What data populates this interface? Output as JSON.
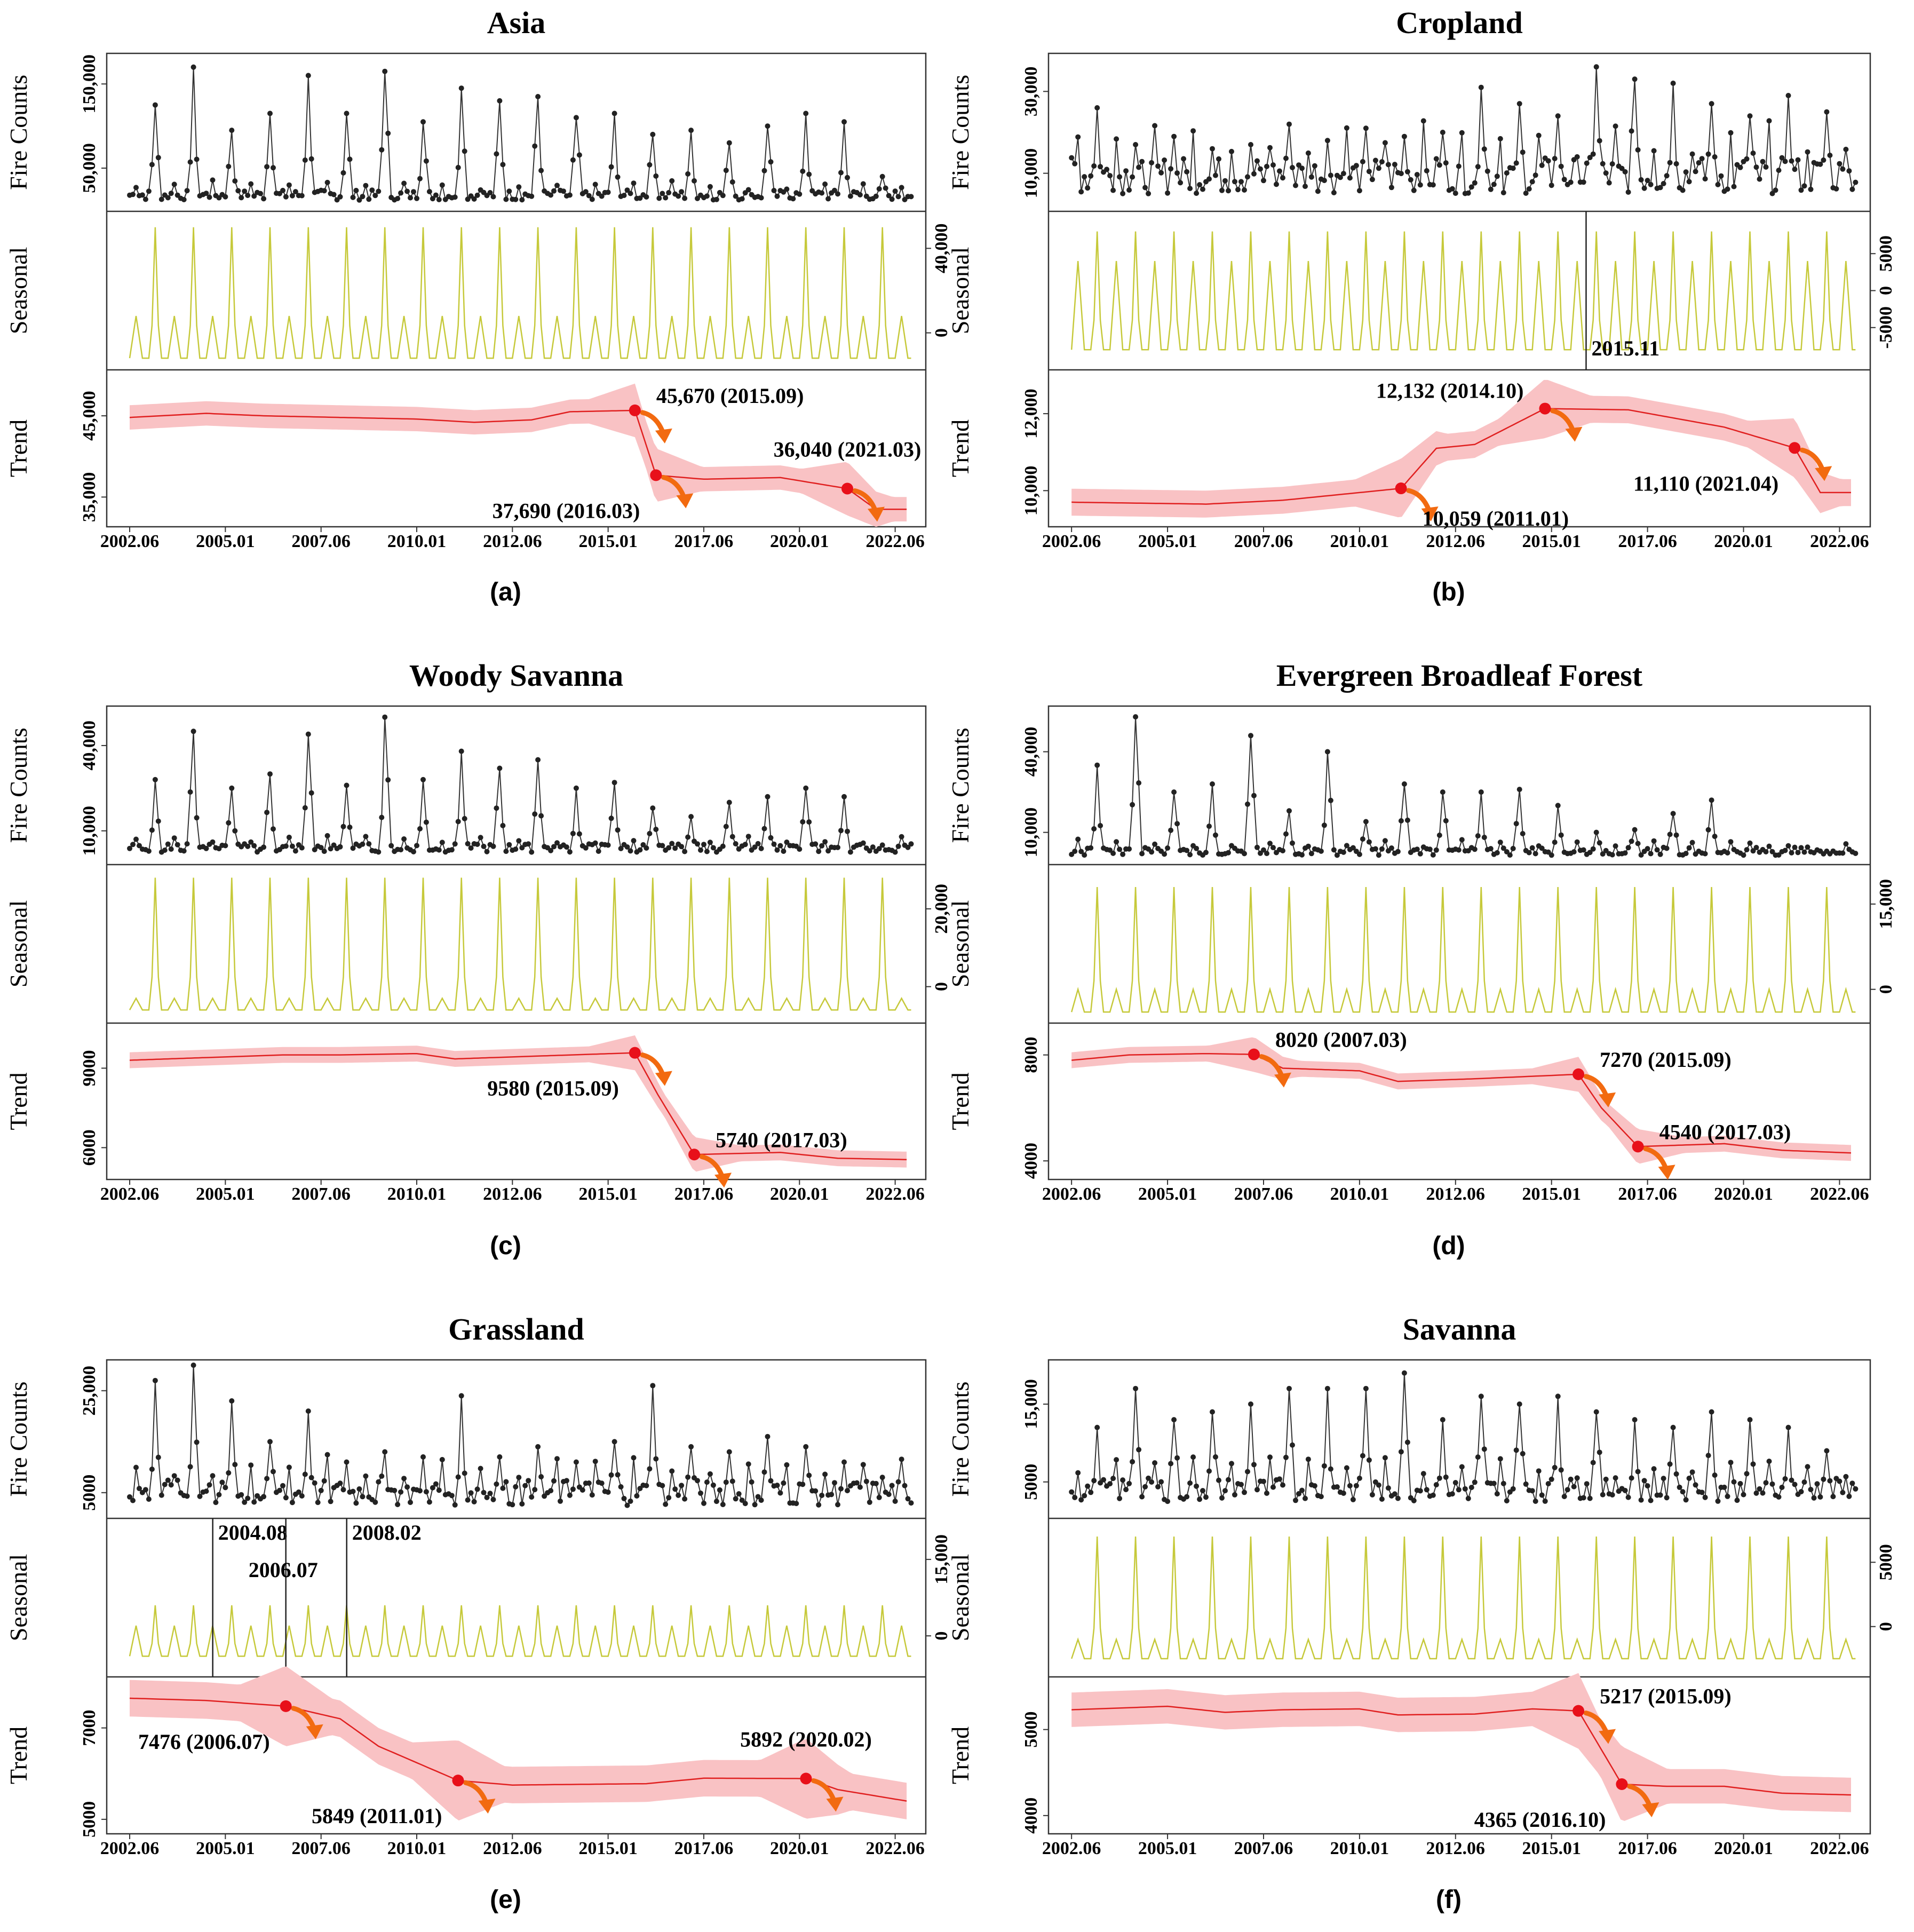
{
  "figure": {
    "x_ticks": [
      "2002.06",
      "2005.01",
      "2007.06",
      "2010.01",
      "2012.06",
      "2015.01",
      "2017.06",
      "2020.01",
      "2022.06"
    ],
    "y_labels": {
      "fire": "Fire Counts",
      "seasonal": "Seasonal",
      "trend": "Trend"
    }
  },
  "chart_data": [
    {
      "type": "line",
      "title": "Asia",
      "panel_label": "(a)",
      "fire_ticks": [
        {
          "v": 50000,
          "label": "50,000"
        },
        {
          "v": 150000,
          "label": "150,000"
        }
      ],
      "fire_range": [
        5000,
        180000
      ],
      "fire_base": 12000,
      "fire_spread": 12000,
      "fire_peaks": [
        125000,
        170000,
        95000,
        115000,
        160000,
        115000,
        165000,
        105000,
        145000,
        130000,
        135000,
        110000,
        115000,
        90000,
        95000,
        80000,
        100000,
        115000,
        105000,
        40000
      ],
      "seasonal_ticks": [
        {
          "v": 0,
          "label": "0"
        },
        {
          "v": 40000,
          "label": "40,000"
        }
      ],
      "seasonal_range": [
        -15000,
        55000
      ],
      "seasonal_amp": 50000,
      "seasonal_secondary": 8000,
      "seasonal_trough": -12000,
      "trend_ticks": [
        {
          "v": 35000,
          "label": "35,000"
        },
        {
          "v": 45000,
          "label": "45,000"
        }
      ],
      "trend_range": [
        32000,
        50000
      ],
      "trend_points": [
        [
          2002.5,
          44800
        ],
        [
          2004.5,
          45300
        ],
        [
          2006.0,
          45000
        ],
        [
          2008.0,
          44800
        ],
        [
          2010.0,
          44600
        ],
        [
          2011.5,
          44200
        ],
        [
          2013.0,
          44500
        ],
        [
          2014.0,
          45500
        ],
        [
          2015.7,
          45670
        ],
        [
          2016.25,
          37690
        ],
        [
          2017.5,
          37200
        ],
        [
          2019.5,
          37400
        ],
        [
          2021.25,
          36040
        ],
        [
          2022.0,
          33500
        ],
        [
          2022.8,
          33500
        ]
      ],
      "trend_band": 1500,
      "breakpoints": [
        {
          "x": 2015.7,
          "y": 45670,
          "label": "45,670 (2015.09)",
          "pos": "right-above"
        },
        {
          "x": 2016.25,
          "y": 37690,
          "label": "37,690 (2016.03)",
          "pos": "left-below"
        },
        {
          "x": 2021.25,
          "y": 36040,
          "label": "36,040 (2021.03)",
          "pos": "above"
        }
      ],
      "seasonal_breaks": []
    },
    {
      "type": "line",
      "title": "Cropland",
      "panel_label": "(b)",
      "fire_ticks": [
        {
          "v": 10000,
          "label": "10,000"
        },
        {
          "v": 30000,
          "label": "30,000"
        }
      ],
      "fire_range": [
        2000,
        38000
      ],
      "fire_base": 5000,
      "fire_spread": 9000,
      "fire_peaks": [
        26000,
        17000,
        19000,
        16000,
        17000,
        22000,
        18000,
        21000,
        19000,
        20000,
        31000,
        27000,
        24000,
        36000,
        33000,
        32000,
        27000,
        24000,
        29000,
        25000
      ],
      "seasonal_ticks": [
        {
          "v": -5000,
          "label": "-5000"
        },
        {
          "v": 0,
          "label": "0"
        },
        {
          "v": 5000,
          "label": "5000"
        }
      ],
      "seasonal_range": [
        -10000,
        10000
      ],
      "seasonal_amp": 8000,
      "seasonal_secondary": 4000,
      "seasonal_trough": -8000,
      "seasonal_breaks": [
        {
          "x": 2015.9,
          "label": "2015.11"
        }
      ],
      "trend_ticks": [
        {
          "v": 10000,
          "label": "10,000"
        },
        {
          "v": 12000,
          "label": "12,000"
        }
      ],
      "trend_range": [
        9200,
        13000
      ],
      "trend_points": [
        [
          2002.5,
          9700
        ],
        [
          2006.0,
          9650
        ],
        [
          2008.0,
          9750
        ],
        [
          2010.0,
          9950
        ],
        [
          2011.08,
          10059
        ],
        [
          2012.0,
          11100
        ],
        [
          2013.0,
          11200
        ],
        [
          2014.83,
          12132
        ],
        [
          2017.0,
          12100
        ],
        [
          2019.5,
          11650
        ],
        [
          2021.33,
          11110
        ],
        [
          2022.0,
          9950
        ],
        [
          2022.8,
          9950
        ]
      ],
      "trend_band": 350,
      "breakpoints": [
        {
          "x": 2011.08,
          "y": 10059,
          "label": "10,059 (2011.01)",
          "pos": "right-below"
        },
        {
          "x": 2014.83,
          "y": 12132,
          "label": "12,132 (2014.10)",
          "pos": "left-above"
        },
        {
          "x": 2021.33,
          "y": 11110,
          "label": "11,110 (2021.04)",
          "pos": "left-below"
        }
      ]
    },
    {
      "type": "line",
      "title": "Woody Savanna",
      "panel_label": "(c)",
      "fire_ticks": [
        {
          "v": 10000,
          "label": "10,000"
        },
        {
          "v": 40000,
          "label": "40,000"
        }
      ],
      "fire_range": [
        0,
        52000
      ],
      "fire_base": 2500,
      "fire_spread": 3000,
      "fire_peaks": [
        28000,
        45000,
        25000,
        30000,
        44000,
        26000,
        50000,
        28000,
        38000,
        32000,
        35000,
        25000,
        27000,
        18000,
        15000,
        20000,
        22000,
        25000,
        22000,
        5000
      ],
      "seasonal_ticks": [
        {
          "v": 0,
          "label": "0"
        },
        {
          "v": 20000,
          "label": "20,000"
        }
      ],
      "seasonal_range": [
        -8000,
        30000
      ],
      "seasonal_amp": 28000,
      "seasonal_secondary": -3000,
      "seasonal_trough": -6000,
      "trend_ticks": [
        {
          "v": 6000,
          "label": "6000"
        },
        {
          "v": 9000,
          "label": "9000"
        }
      ],
      "trend_range": [
        5000,
        10500
      ],
      "trend_points": [
        [
          2002.5,
          9300
        ],
        [
          2004.5,
          9400
        ],
        [
          2006.5,
          9500
        ],
        [
          2008.0,
          9500
        ],
        [
          2010.0,
          9550
        ],
        [
          2011.0,
          9350
        ],
        [
          2013.0,
          9450
        ],
        [
          2015.7,
          9580
        ],
        [
          2016.3,
          8000
        ],
        [
          2017.25,
          5740
        ],
        [
          2019.5,
          5820
        ],
        [
          2021.0,
          5600
        ],
        [
          2022.8,
          5550
        ]
      ],
      "trend_band": 300,
      "breakpoints": [
        {
          "x": 2015.7,
          "y": 9580,
          "label": "9580 (2015.09)",
          "pos": "left-below"
        },
        {
          "x": 2017.25,
          "y": 5740,
          "label": "5740 (2017.03)",
          "pos": "right-above"
        }
      ],
      "seasonal_breaks": []
    },
    {
      "type": "line",
      "title": "Evergreen Broadleaf Forest",
      "panel_label": "(d)",
      "fire_ticks": [
        {
          "v": 10000,
          "label": "10,000"
        },
        {
          "v": 40000,
          "label": "40,000"
        }
      ],
      "fire_range": [
        0,
        55000
      ],
      "fire_base": 1500,
      "fire_spread": 3000,
      "fire_peaks": [
        35000,
        53000,
        25000,
        28000,
        46000,
        18000,
        40000,
        14000,
        28000,
        25000,
        25000,
        26000,
        20000,
        10000,
        11000,
        17000,
        22000,
        6000,
        5000,
        3000
      ],
      "seasonal_ticks": [
        {
          "v": 0,
          "label": "0"
        },
        {
          "v": 15000,
          "label": "15,000"
        }
      ],
      "seasonal_range": [
        -5000,
        21000
      ],
      "seasonal_amp": 18000,
      "seasonal_secondary": 0,
      "seasonal_trough": -4000,
      "trend_ticks": [
        {
          "v": 4000,
          "label": "4000"
        },
        {
          "v": 8000,
          "label": "8000"
        }
      ],
      "trend_range": [
        3500,
        9000
      ],
      "trend_points": [
        [
          2002.5,
          7800
        ],
        [
          2004.0,
          8000
        ],
        [
          2006.0,
          8050
        ],
        [
          2007.25,
          8020
        ],
        [
          2008.0,
          7500
        ],
        [
          2010.0,
          7400
        ],
        [
          2011.0,
          7000
        ],
        [
          2013.0,
          7100
        ],
        [
          2015.7,
          7270
        ],
        [
          2016.3,
          6000
        ],
        [
          2017.25,
          4540
        ],
        [
          2019.5,
          4650
        ],
        [
          2021.0,
          4400
        ],
        [
          2022.8,
          4300
        ]
      ],
      "trend_band": 300,
      "breakpoints": [
        {
          "x": 2007.25,
          "y": 8020,
          "label": "8020 (2007.03)",
          "pos": "right-above"
        },
        {
          "x": 2015.7,
          "y": 7270,
          "label": "7270 (2015.09)",
          "pos": "right-above"
        },
        {
          "x": 2017.25,
          "y": 4540,
          "label": "4540 (2017.03)",
          "pos": "right-above"
        }
      ],
      "seasonal_breaks": []
    },
    {
      "type": "line",
      "title": "Grassland",
      "panel_label": "(e)",
      "fire_ticks": [
        {
          "v": 5000,
          "label": "5000"
        },
        {
          "v": 25000,
          "label": "25,000"
        }
      ],
      "fire_range": [
        1000,
        30000
      ],
      "fire_base": 2500,
      "fire_spread": 5000,
      "fire_peaks": [
        27000,
        30000,
        23000,
        15000,
        21000,
        11000,
        13000,
        12000,
        24000,
        12000,
        14000,
        11000,
        15000,
        26000,
        14000,
        13000,
        16000,
        14000,
        11000,
        8000
      ],
      "seasonal_ticks": [
        {
          "v": 0,
          "label": "0"
        },
        {
          "v": 15000,
          "label": "15,000"
        }
      ],
      "seasonal_range": [
        -7000,
        22000
      ],
      "seasonal_amp": 6000,
      "seasonal_secondary": 2000,
      "seasonal_trough": -4000,
      "seasonal_breaks": [
        {
          "x": 2004.67,
          "label": "2004.08"
        },
        {
          "x": 2006.58,
          "label": "2006.07"
        },
        {
          "x": 2008.17,
          "label": "2008.02"
        }
      ],
      "trend_ticks": [
        {
          "v": 5000,
          "label": "5000"
        },
        {
          "v": 7000,
          "label": "7000"
        }
      ],
      "trend_range": [
        4800,
        8000
      ],
      "trend_points": [
        [
          2002.5,
          7650
        ],
        [
          2004.5,
          7600
        ],
        [
          2006.58,
          7476
        ],
        [
          2008.0,
          7200
        ],
        [
          2009.0,
          6600
        ],
        [
          2011.08,
          5849
        ],
        [
          2012.5,
          5750
        ],
        [
          2016.0,
          5780
        ],
        [
          2017.5,
          5900
        ],
        [
          2020.17,
          5892
        ],
        [
          2021.0,
          5650
        ],
        [
          2022.8,
          5400
        ]
      ],
      "trend_band": 400,
      "breakpoints": [
        {
          "x": 2006.58,
          "y": 7476,
          "label": "7476 (2006.07)",
          "pos": "left-below"
        },
        {
          "x": 2011.08,
          "y": 5849,
          "label": "5849 (2011.01)",
          "pos": "left-below"
        },
        {
          "x": 2020.17,
          "y": 5892,
          "label": "5892 (2020.02)",
          "pos": "above"
        }
      ]
    },
    {
      "type": "line",
      "title": "Savanna",
      "panel_label": "(f)",
      "fire_ticks": [
        {
          "v": 5000,
          "label": "5000"
        },
        {
          "v": 15000,
          "label": "15,000"
        }
      ],
      "fire_range": [
        1000,
        20000
      ],
      "fire_base": 2500,
      "fire_spread": 3000,
      "fire_peaks": [
        12000,
        17000,
        13000,
        14000,
        15000,
        17000,
        17000,
        17000,
        19000,
        13000,
        16000,
        15000,
        16000,
        14000,
        13000,
        12000,
        14000,
        13000,
        12000,
        9000
      ],
      "seasonal_ticks": [
        {
          "v": 0,
          "label": "0"
        },
        {
          "v": 5000,
          "label": "5000"
        }
      ],
      "seasonal_range": [
        -3500,
        8000
      ],
      "seasonal_amp": 7000,
      "seasonal_secondary": -1000,
      "seasonal_trough": -2500,
      "trend_ticks": [
        {
          "v": 4000,
          "label": "4000"
        },
        {
          "v": 5000,
          "label": "5000"
        }
      ],
      "trend_range": [
        3850,
        5550
      ],
      "trend_points": [
        [
          2002.5,
          5230
        ],
        [
          2005.0,
          5270
        ],
        [
          2006.5,
          5200
        ],
        [
          2008.0,
          5230
        ],
        [
          2010.0,
          5240
        ],
        [
          2011.0,
          5170
        ],
        [
          2013.0,
          5180
        ],
        [
          2014.5,
          5240
        ],
        [
          2015.7,
          5217
        ],
        [
          2016.83,
          4365
        ],
        [
          2018.0,
          4340
        ],
        [
          2019.5,
          4340
        ],
        [
          2021.0,
          4260
        ],
        [
          2022.8,
          4240
        ]
      ],
      "trend_band": 200,
      "breakpoints": [
        {
          "x": 2015.7,
          "y": 5217,
          "label": "5217 (2015.09)",
          "pos": "right-above"
        },
        {
          "x": 2016.83,
          "y": 4365,
          "label": "4365 (2016.10)",
          "pos": "left-below"
        }
      ],
      "seasonal_breaks": []
    }
  ]
}
